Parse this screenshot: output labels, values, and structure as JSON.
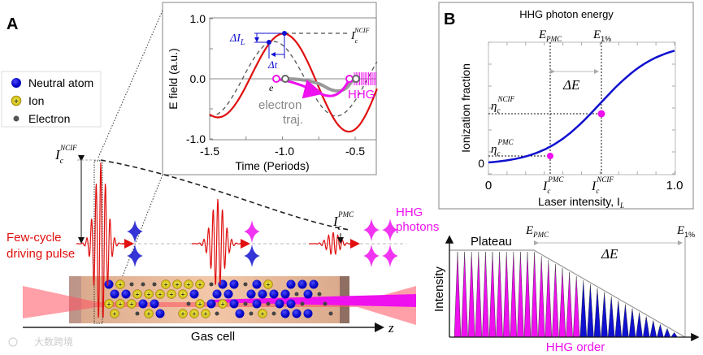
{
  "panel_a": {
    "label": "A",
    "legend": [
      {
        "label": "Neutral atom",
        "icon": "neutral-atom-icon",
        "color": "#1010d8"
      },
      {
        "label": "Ion",
        "icon": "ion-icon",
        "color": "#f0e020",
        "glyph": "+"
      },
      {
        "label": "Electron",
        "icon": "electron-icon",
        "color": "#444444",
        "glyph": "-"
      }
    ],
    "inset": {
      "ylabel": "E field (a.u.)",
      "xlabel": "Time (Periods)",
      "xticks": [
        "-1.5",
        "-1.0",
        "-0.5"
      ],
      "yticks": [
        "1.0",
        "0.0",
        "-1.0"
      ],
      "delta_il": {
        "base": "ΔI",
        "sub": "L"
      },
      "delta_t": "Δt",
      "ic_ncif": {
        "base": "I",
        "sub": "c",
        "sup": "NCIF"
      },
      "electron_symbol": "e",
      "electron_traj": [
        "electron",
        "traj."
      ],
      "hhg": "HHG"
    },
    "ic_ncif": {
      "base": "I",
      "sub": "c",
      "sup": "NCIF"
    },
    "ic_pmc": {
      "base": "I",
      "sub": "c",
      "sup": "PMC"
    },
    "pulse_label": [
      "Few-cycle",
      "driving pulse"
    ],
    "hhg_label": [
      "HHG",
      "photons"
    ],
    "gas_cell": "Gas cell",
    "z_axis": "z",
    "watermark": "大数跨境"
  },
  "panel_b": {
    "label": "B",
    "top_title": "HHG photon energy",
    "e_pmc": {
      "base": "E",
      "sub": "PMC"
    },
    "e_1pct": {
      "base": "E",
      "sub": "1%"
    },
    "delta_e": "ΔE",
    "ylabel": "Ionization fraction",
    "xlabel": {
      "base": "Laser intensity, I",
      "sub": "L"
    },
    "y_zero": "0",
    "x_ticks": [
      "0",
      "1.0"
    ],
    "eta_ncif": {
      "base": "η",
      "sub": "c",
      "sup": "NCIF"
    },
    "eta_pmc": {
      "base": "η",
      "sub": "c",
      "sup": "PMC"
    },
    "ic_pmc": {
      "base": "I",
      "sub": "c",
      "sup": "PMC"
    },
    "ic_ncif": {
      "base": "I",
      "sub": "c",
      "sup": "NCIF"
    }
  },
  "panel_c": {
    "plateau": "Plateau",
    "e_pmc": {
      "base": "E",
      "sub": "PMC"
    },
    "e_1pct": {
      "base": "E",
      "sub": "1%"
    },
    "delta_e": "ΔE",
    "ylabel": "Intensity",
    "xlabel": "HHG order"
  },
  "colors": {
    "red": "#e01010",
    "blue": "#1010d0",
    "magenta": "#ee10ee",
    "gray": "#888888"
  }
}
